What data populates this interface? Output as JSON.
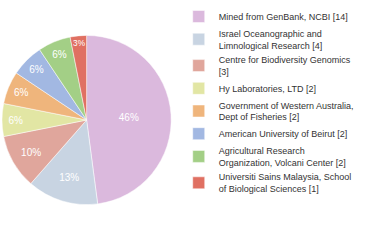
{
  "chart_data": {
    "type": "pie",
    "categories": [
      "Mined from GenBank, NCBI [14]",
      "Israel Oceanographic and Limnological Research [4]",
      "Centre for Biodiversity Genomics [3]",
      "Hy Laboratories, LTD [2]",
      "Government of Western Australia, Dept of Fisheries [2]",
      "American University of Beirut [2]",
      "Agricultural Research Organization, Volcani Center [2]",
      "Universiti Sains Malaysia, School of Biological Sciences [1]"
    ],
    "values": [
      46,
      13,
      10,
      6,
      6,
      6,
      6,
      3
    ],
    "value_labels": [
      "46%",
      "13%",
      "10%",
      "6%",
      "6%",
      "6%",
      "6%",
      "3%"
    ],
    "colors": [
      "#dbb9dd",
      "#c8d4e2",
      "#e0a69c",
      "#e2e6a4",
      "#efb57c",
      "#a2b8e2",
      "#a3cf86",
      "#e07062"
    ],
    "data_labels": true,
    "legend": "right"
  }
}
